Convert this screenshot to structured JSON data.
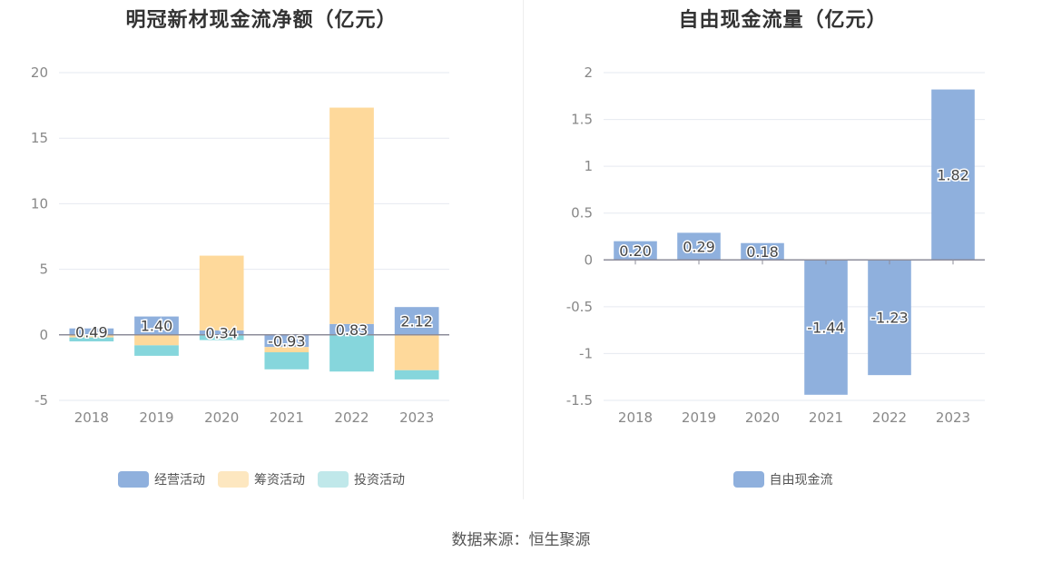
{
  "source": "数据来源：恒生聚源",
  "chart_data": [
    {
      "type": "bar",
      "stacked": true,
      "title": "明冠新材现金流净额（亿元）",
      "categories": [
        "2018",
        "2019",
        "2020",
        "2021",
        "2022",
        "2023"
      ],
      "ylim": [
        -5,
        20
      ],
      "yticks": [
        -5,
        0,
        5,
        10,
        15,
        20
      ],
      "grid": true,
      "legend_position": "bottom",
      "series": [
        {
          "name": "经营活动",
          "color": "#8fb0dd",
          "values": [
            0.49,
            1.4,
            0.34,
            -0.93,
            0.83,
            2.12
          ]
        },
        {
          "name": "筹资活动",
          "color": "#fed99b",
          "values": [
            -0.2,
            -0.8,
            5.7,
            -0.4,
            16.5,
            -2.7
          ]
        },
        {
          "name": "投资活动",
          "color": "#86d6dc",
          "values": [
            -0.3,
            -0.8,
            -0.4,
            -1.3,
            -2.8,
            -0.7
          ]
        }
      ],
      "data_labels": [
        "0.49",
        "1.40",
        "0.34",
        "-0.93",
        "0.83",
        "2.12"
      ],
      "legend": [
        {
          "name": "经营活动",
          "color": "#8fb0dd"
        },
        {
          "name": "筹资活动",
          "color": "#fde7c0"
        },
        {
          "name": "投资活动",
          "color": "#c0e8ea"
        }
      ]
    },
    {
      "type": "bar",
      "title": "自由现金流量（亿元）",
      "categories": [
        "2018",
        "2019",
        "2020",
        "2021",
        "2022",
        "2023"
      ],
      "ylim": [
        -1.5,
        2
      ],
      "yticks": [
        -1.5,
        -1,
        -0.5,
        0,
        0.5,
        1,
        1.5,
        2
      ],
      "grid": true,
      "legend_position": "bottom",
      "series": [
        {
          "name": "自由现金流",
          "color": "#8fb0dd",
          "values": [
            0.2,
            0.29,
            0.18,
            -1.44,
            -1.23,
            1.82
          ]
        }
      ],
      "data_labels": [
        "0.20",
        "0.29",
        "0.18",
        "-1.44",
        "-1.23",
        "1.82"
      ],
      "legend": [
        {
          "name": "自由现金流",
          "color": "#8fb0dd"
        }
      ]
    }
  ]
}
